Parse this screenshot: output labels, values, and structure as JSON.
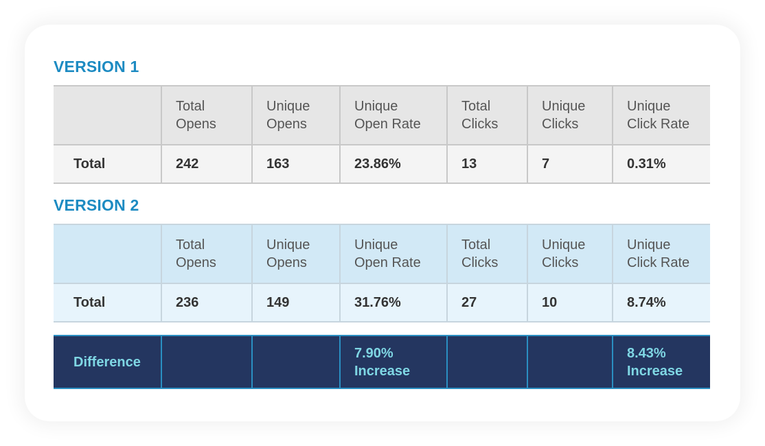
{
  "chart_data": {
    "type": "table",
    "version1": {
      "title": "VERSION 1",
      "headers": [
        [
          "Total",
          "Opens"
        ],
        [
          "Unique",
          "Opens"
        ],
        [
          "Unique",
          "Open Rate"
        ],
        [
          "Total",
          "Clicks"
        ],
        [
          "Unique",
          "Clicks"
        ],
        [
          "Unique",
          "Click Rate"
        ]
      ],
      "row_label": "Total",
      "values": [
        "242",
        "163",
        "23.86%",
        "13",
        "7",
        "0.31%"
      ]
    },
    "version2": {
      "title": "VERSION 2",
      "headers": [
        [
          "Total",
          "Opens"
        ],
        [
          "Unique",
          "Opens"
        ],
        [
          "Unique",
          "Open Rate"
        ],
        [
          "Total",
          "Clicks"
        ],
        [
          "Unique",
          "Clicks"
        ],
        [
          "Unique",
          "Click Rate"
        ]
      ],
      "row_label": "Total",
      "values": [
        "236",
        "149",
        "31.76%",
        "27",
        "10",
        "8.74%"
      ]
    },
    "difference": {
      "label": "Difference",
      "open_rate": [
        "7.90%",
        "Increase"
      ],
      "click_rate": [
        "8.43%",
        "Increase"
      ]
    }
  },
  "colors": {
    "title_blue": "#1d8bc2",
    "v1_header_bg": "#e6e6e6",
    "v2_header_bg": "#d2e9f6",
    "difference_bg": "#243660",
    "difference_text": "#7fd7e4"
  }
}
